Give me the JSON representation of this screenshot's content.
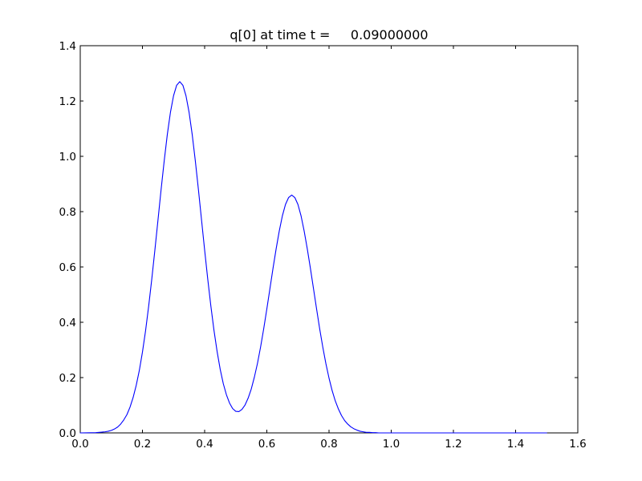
{
  "figure": {
    "background_color": "#ffffff",
    "axes_edge_color": "#000000",
    "text_color": "#000000"
  },
  "chart_data": {
    "type": "line",
    "title": "q[0] at time t =     0.09000000",
    "xlabel": "",
    "ylabel": "",
    "xlim": [
      0.0,
      1.6
    ],
    "ylim": [
      0.0,
      1.4
    ],
    "xticks": [
      0.0,
      0.2,
      0.4,
      0.6,
      0.8,
      1.0,
      1.2,
      1.4,
      1.6
    ],
    "xtick_labels": [
      "0.0",
      "0.2",
      "0.4",
      "0.6",
      "0.8",
      "1.0",
      "1.2",
      "1.4",
      "1.6"
    ],
    "yticks": [
      0.0,
      0.2,
      0.4,
      0.6,
      0.8,
      1.0,
      1.2,
      1.4
    ],
    "ytick_labels": [
      "0.0",
      "0.2",
      "0.4",
      "0.6",
      "0.8",
      "1.0",
      "1.2",
      "1.4"
    ],
    "grid": false,
    "legend": false,
    "line_color": "#0000ff",
    "series": [
      {
        "name": "q[0]",
        "x": [
          0.0,
          0.05,
          0.08,
          0.09,
          0.1,
          0.11,
          0.12,
          0.13,
          0.14,
          0.15,
          0.16,
          0.17,
          0.18,
          0.19,
          0.2,
          0.21,
          0.22,
          0.23,
          0.24,
          0.25,
          0.26,
          0.27,
          0.28,
          0.29,
          0.3,
          0.31,
          0.32,
          0.33,
          0.34,
          0.35,
          0.36,
          0.37,
          0.38,
          0.39,
          0.4,
          0.41,
          0.42,
          0.43,
          0.44,
          0.45,
          0.46,
          0.47,
          0.48,
          0.49,
          0.5,
          0.51,
          0.52,
          0.53,
          0.54,
          0.55,
          0.56,
          0.57,
          0.58,
          0.59,
          0.6,
          0.61,
          0.62,
          0.63,
          0.64,
          0.65,
          0.66,
          0.67,
          0.68,
          0.69,
          0.7,
          0.71,
          0.72,
          0.73,
          0.74,
          0.75,
          0.76,
          0.77,
          0.78,
          0.79,
          0.8,
          0.81,
          0.82,
          0.83,
          0.84,
          0.85,
          0.86,
          0.87,
          0.88,
          0.89,
          0.9,
          0.91,
          0.92,
          0.93,
          0.94,
          0.95,
          0.96,
          1.0,
          1.1,
          1.2,
          1.3,
          1.4,
          1.5
        ],
        "y": [
          0.0,
          0.001,
          0.004,
          0.006,
          0.009,
          0.014,
          0.021,
          0.032,
          0.047,
          0.066,
          0.093,
          0.128,
          0.172,
          0.226,
          0.292,
          0.369,
          0.458,
          0.556,
          0.661,
          0.77,
          0.88,
          0.984,
          1.079,
          1.159,
          1.219,
          1.257,
          1.27,
          1.257,
          1.219,
          1.159,
          1.079,
          0.984,
          0.88,
          0.77,
          0.661,
          0.556,
          0.459,
          0.371,
          0.295,
          0.23,
          0.178,
          0.138,
          0.108,
          0.088,
          0.078,
          0.077,
          0.085,
          0.101,
          0.126,
          0.159,
          0.202,
          0.252,
          0.311,
          0.377,
          0.448,
          0.522,
          0.596,
          0.666,
          0.73,
          0.785,
          0.826,
          0.851,
          0.86,
          0.851,
          0.826,
          0.785,
          0.73,
          0.666,
          0.596,
          0.522,
          0.448,
          0.376,
          0.31,
          0.25,
          0.198,
          0.153,
          0.116,
          0.087,
          0.063,
          0.045,
          0.032,
          0.022,
          0.015,
          0.01,
          0.006,
          0.004,
          0.002,
          0.002,
          0.001,
          0.001,
          0.0,
          0.0,
          0.0,
          0.0,
          0.0,
          0.0,
          0.0
        ]
      }
    ]
  }
}
